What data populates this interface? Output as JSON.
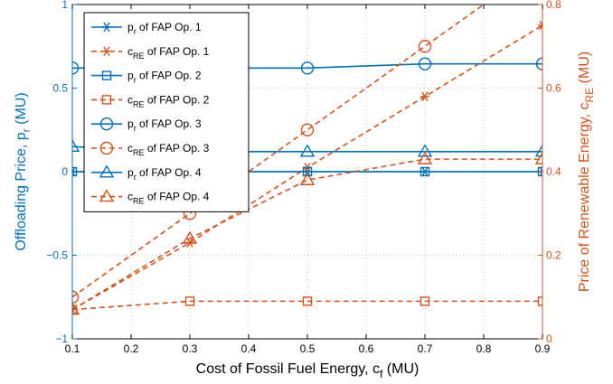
{
  "chart_data": {
    "type": "line",
    "xlabel": "Cost of Fossil Fuel Energy, c",
    "xlabel_sub": "f",
    "xlabel_unit": " (MU)",
    "ylabel_left": "Offloading Price, p",
    "ylabel_left_sub": "r",
    "ylabel_left_unit": " (MU)",
    "ylabel_right": "Price of Renewable Energy, c",
    "ylabel_right_sub": "RE",
    "ylabel_right_unit": " (MU)",
    "x": [
      0.1,
      0.3,
      0.5,
      0.7,
      0.9
    ],
    "xlim": [
      0.1,
      0.9
    ],
    "ylim_left": [
      -1,
      1
    ],
    "ylim_right": [
      0,
      0.8
    ],
    "x_ticks": [
      "0.1",
      "0.2",
      "0.3",
      "0.4",
      "0.5",
      "0.6",
      "0.7",
      "0.8",
      "0.9"
    ],
    "y_left_ticks": [
      "−1",
      "−0.5",
      "0",
      "0.5",
      "1"
    ],
    "y_right_ticks": [
      "0",
      "0.2",
      "0.4",
      "0.6",
      "0.8"
    ],
    "grid": true,
    "legend_position": "top-left",
    "colors": {
      "left": "#0072bd",
      "right": "#d95319"
    },
    "series": [
      {
        "label_main": "p",
        "label_sub": "r",
        "label_tail": " of FAP Op. 1",
        "axis": "left",
        "marker": "asterisk",
        "dash": false,
        "values": [
          0.0,
          0.0,
          0.0,
          0.0,
          0.0
        ]
      },
      {
        "label_main": "c",
        "label_sub": "RE",
        "label_tail": " of FAP Op. 1",
        "axis": "right",
        "marker": "asterisk",
        "dash": true,
        "values": [
          0.07,
          0.23,
          0.41,
          0.58,
          0.75
        ]
      },
      {
        "label_main": "p",
        "label_sub": "r",
        "label_tail": " of FAP Op. 2",
        "axis": "left",
        "marker": "square",
        "dash": false,
        "values": [
          0.0,
          0.0,
          0.0,
          0.0,
          0.0
        ]
      },
      {
        "label_main": "c",
        "label_sub": "RE",
        "label_tail": " of FAP Op. 2",
        "axis": "right",
        "marker": "square",
        "dash": true,
        "values": [
          0.07,
          0.09,
          0.09,
          0.09,
          0.09
        ]
      },
      {
        "label_main": "p",
        "label_sub": "r",
        "label_tail": " of FAP Op. 3",
        "axis": "left",
        "marker": "circle",
        "dash": false,
        "values": [
          0.62,
          0.62,
          0.62,
          0.645,
          0.645
        ]
      },
      {
        "label_main": "c",
        "label_sub": "RE",
        "label_tail": " of FAP Op. 3",
        "axis": "right",
        "marker": "circle",
        "dash": true,
        "values": [
          0.1,
          0.3,
          0.5,
          0.7,
          0.9
        ]
      },
      {
        "label_main": "p",
        "label_sub": "r",
        "label_tail": " of FAP Op. 4",
        "axis": "left",
        "marker": "triangle",
        "dash": false,
        "values": [
          0.15,
          0.12,
          0.12,
          0.12,
          0.12
        ]
      },
      {
        "label_main": "c",
        "label_sub": "RE",
        "label_tail": " of FAP Op. 4",
        "axis": "right",
        "marker": "triangle",
        "dash": true,
        "values": [
          0.07,
          0.24,
          0.38,
          0.43,
          0.43
        ]
      }
    ]
  }
}
